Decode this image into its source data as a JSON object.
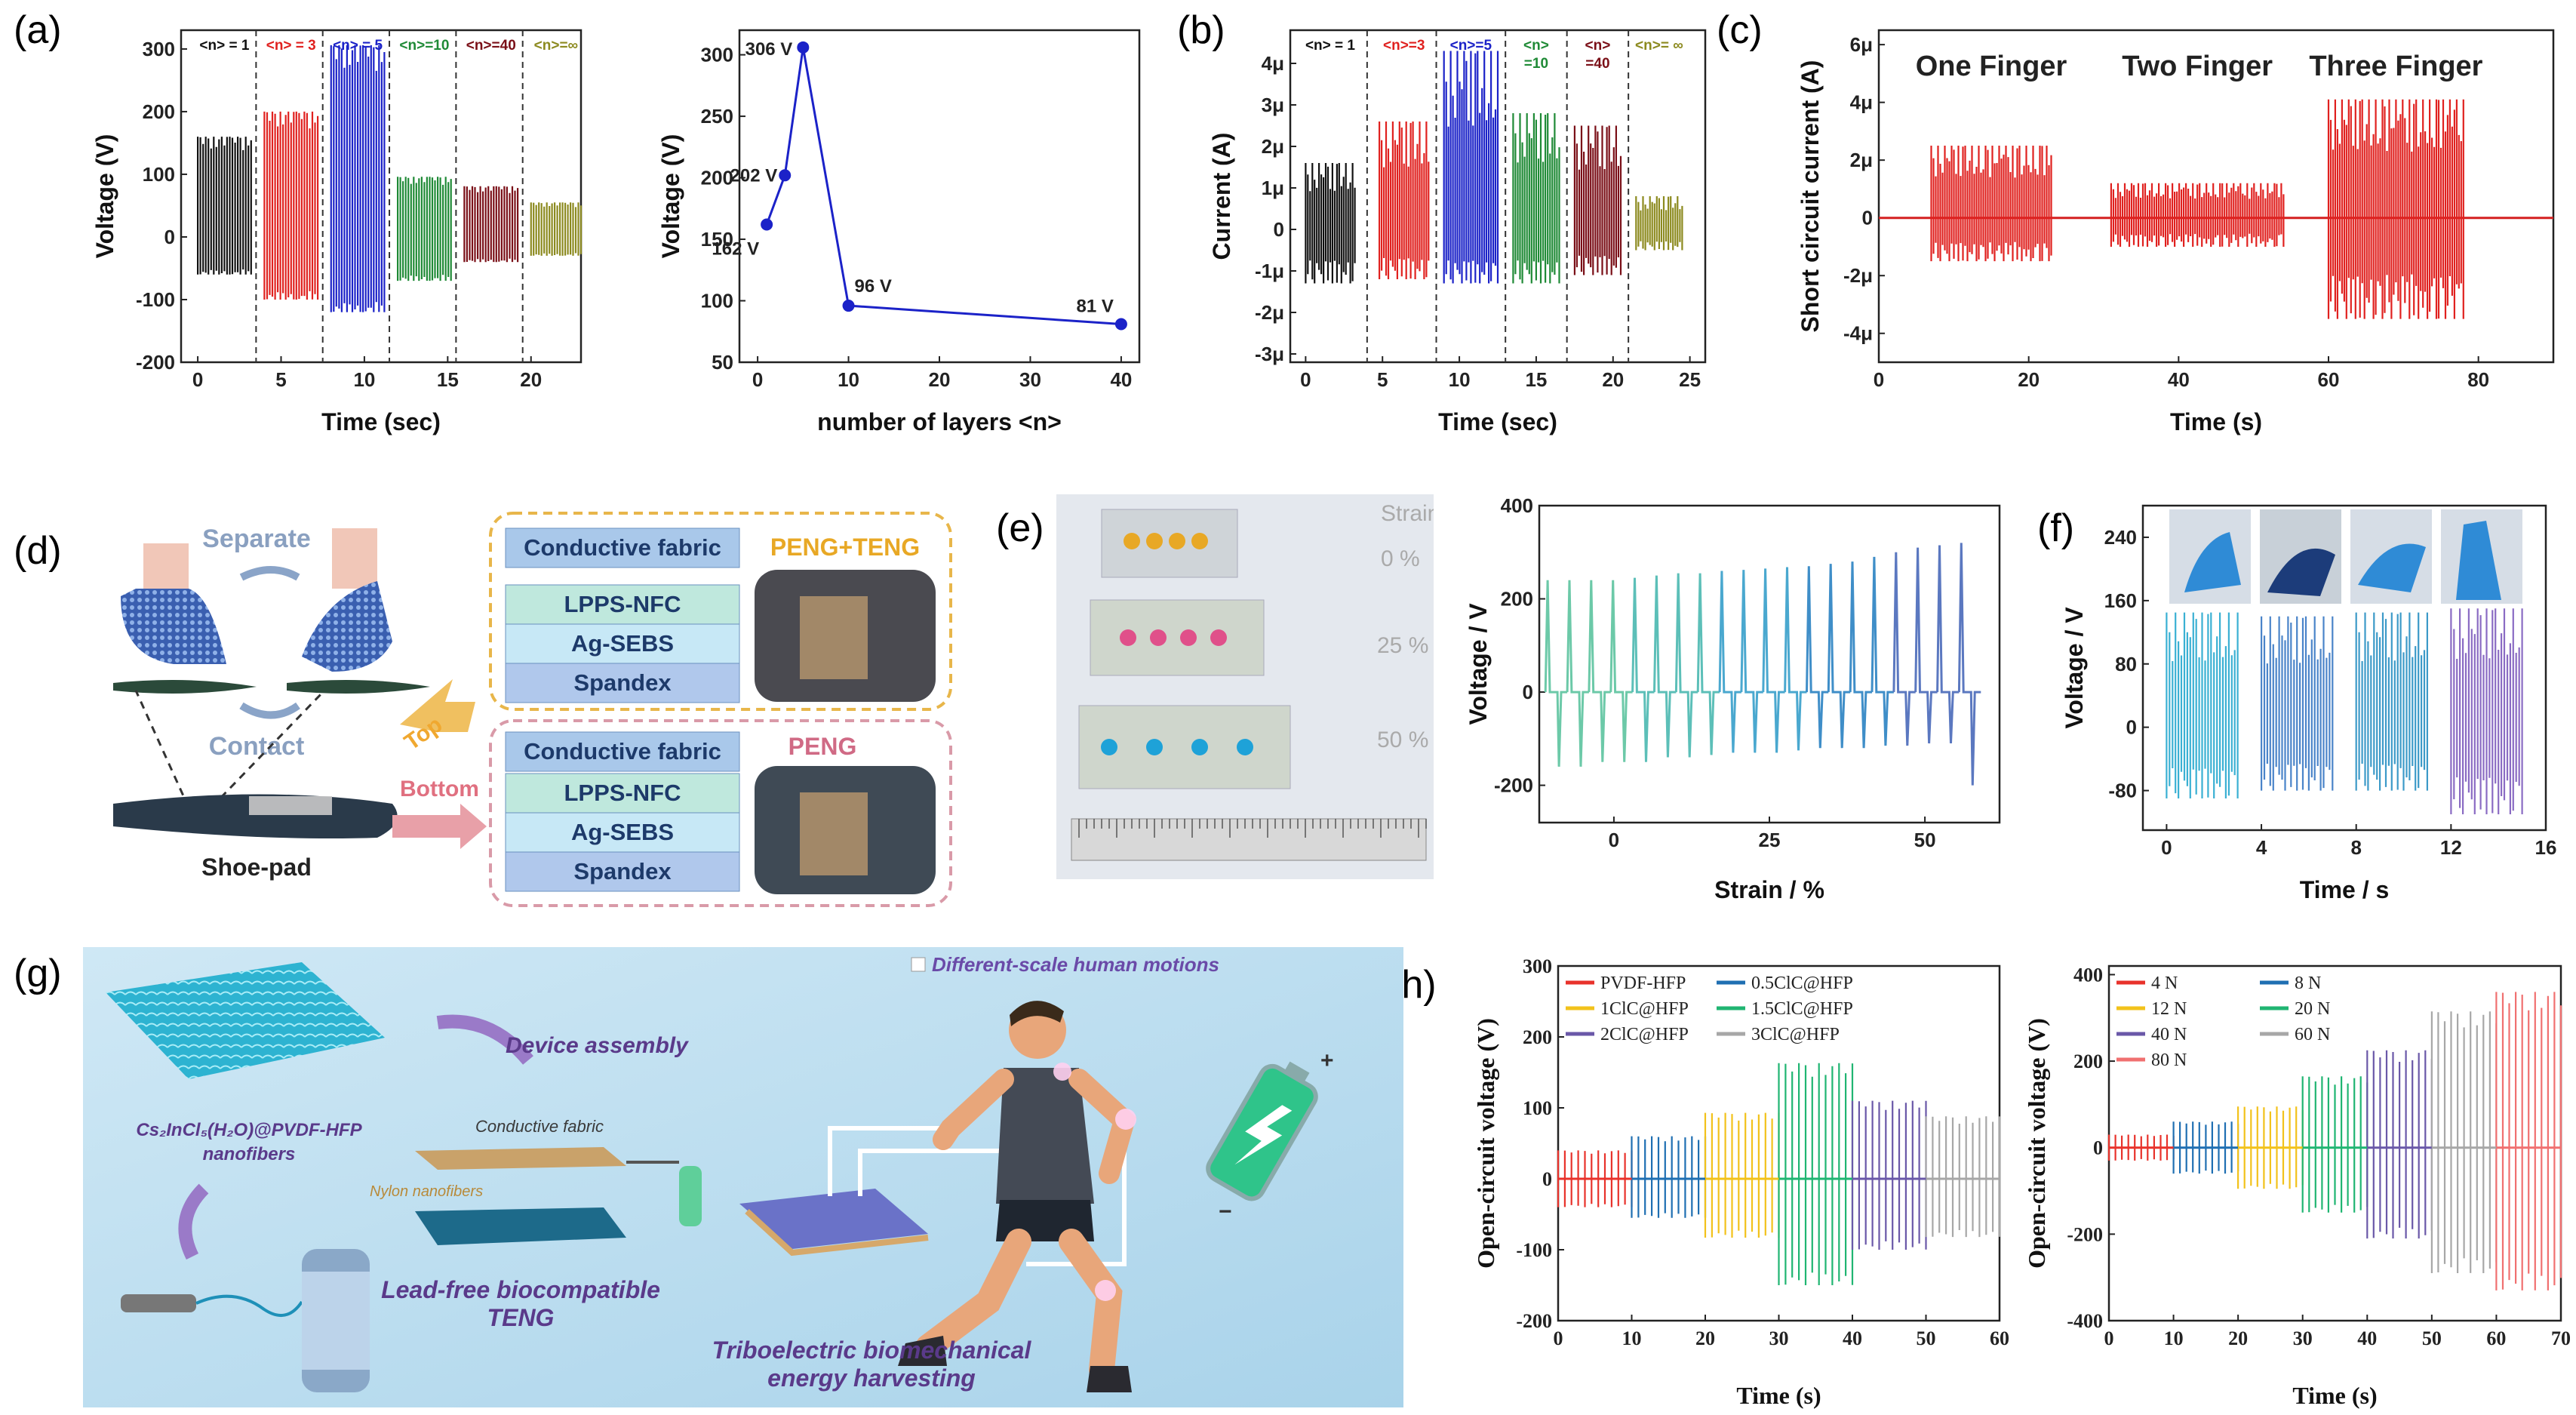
{
  "panels": {
    "a": "(a)",
    "b": "(b)",
    "c": "(c)",
    "d": "(d)",
    "e": "(e)",
    "f": "(f)",
    "g": "(g)",
    "h": "(h)"
  },
  "colors": {
    "black": "#111111",
    "red": "#e0211f",
    "blue": "#1b22c8",
    "green": "#1f8a36",
    "maroon": "#7a0f17",
    "olive": "#8c8a1f",
    "gold": "#e8a825",
    "fabric": "#2aa5b5"
  },
  "chart_data": [
    {
      "id": "a1",
      "type": "area",
      "title": "",
      "xlabel": "Time (sec)",
      "ylabel": "Voltage (V)",
      "xlim": [
        -1,
        23
      ],
      "ylim": [
        -200,
        330
      ],
      "xticks": [
        0,
        5,
        10,
        15,
        20
      ],
      "yticks": [
        -200,
        -100,
        0,
        100,
        200,
        300
      ],
      "dividers": [
        3.5,
        7.5,
        11.5,
        15.5,
        19.5
      ],
      "segment_labels": [
        "<n> = 1",
        "<n> = 3",
        "<n> = 5",
        "<n>=10",
        "<n>=40",
        "<n>=∞"
      ],
      "series": [
        {
          "name": "<n> = 1",
          "x": [
            0,
            3.2
          ],
          "max": 160,
          "min": -60,
          "color": "black"
        },
        {
          "name": "<n> = 3",
          "x": [
            4,
            7.2
          ],
          "max": 200,
          "min": -100,
          "color": "red"
        },
        {
          "name": "<n> = 5",
          "x": [
            8,
            11.2
          ],
          "max": 306,
          "min": -120,
          "color": "blue"
        },
        {
          "name": "<n>=10",
          "x": [
            12,
            15.2
          ],
          "max": 96,
          "min": -70,
          "color": "green"
        },
        {
          "name": "<n>=40",
          "x": [
            16,
            19.2
          ],
          "max": 81,
          "min": -40,
          "color": "maroon"
        },
        {
          "name": "<n>=∞",
          "x": [
            20,
            23
          ],
          "max": 55,
          "min": -30,
          "color": "olive"
        }
      ]
    },
    {
      "id": "a2",
      "type": "line",
      "title": "",
      "xlabel": "number of layers <n>",
      "ylabel": "Voltage (V)",
      "xlim": [
        -2,
        42
      ],
      "ylim": [
        50,
        320
      ],
      "xticks": [
        0,
        10,
        20,
        30,
        40
      ],
      "yticks": [
        50,
        100,
        150,
        200,
        250,
        300
      ],
      "x": [
        1,
        3,
        5,
        10,
        40
      ],
      "values": [
        162,
        202,
        306,
        96,
        81
      ],
      "point_labels": [
        "162 V",
        "202 V",
        "306 V",
        "96 V",
        "81 V"
      ],
      "color": "#1b22c8"
    },
    {
      "id": "b",
      "type": "area",
      "title": "",
      "xlabel": "Time (sec)",
      "ylabel": "Current (A)",
      "xlim": [
        -1,
        26
      ],
      "ylim": [
        -3.2,
        4.8
      ],
      "xticks": [
        0,
        5,
        10,
        15,
        20,
        25
      ],
      "yticks": [
        -3,
        -2,
        -1,
        0,
        1,
        2,
        3,
        4
      ],
      "ytick_labels": [
        "-3μ",
        "-2μ",
        "-1μ",
        "0",
        "1μ",
        "2μ",
        "3μ",
        "4μ"
      ],
      "dividers": [
        4,
        8.5,
        13,
        17,
        21
      ],
      "segment_labels": [
        "<n> = 1",
        "<n>=3",
        "<n>=5",
        "<n>\n=10",
        "<n>\n=40",
        "<n>= ∞"
      ],
      "series": [
        {
          "name": "<n> = 1",
          "x": [
            0,
            3.2
          ],
          "max": 1.6,
          "min": -1.3,
          "color": "black"
        },
        {
          "name": "<n>=3",
          "x": [
            4.8,
            8
          ],
          "max": 2.6,
          "min": -1.2,
          "color": "red"
        },
        {
          "name": "<n>=5",
          "x": [
            9,
            12.5
          ],
          "max": 4.3,
          "min": -1.3,
          "color": "blue"
        },
        {
          "name": "<n>=10",
          "x": [
            13.5,
            16.5
          ],
          "max": 2.8,
          "min": -1.3,
          "color": "green"
        },
        {
          "name": "<n>=40",
          "x": [
            17.5,
            20.5
          ],
          "max": 2.5,
          "min": -1.1,
          "color": "maroon"
        },
        {
          "name": "<n>=∞",
          "x": [
            21.5,
            24.5
          ],
          "max": 0.8,
          "min": -0.5,
          "color": "olive"
        }
      ]
    },
    {
      "id": "c",
      "type": "area",
      "title": "",
      "xlabel": "Time (s)",
      "ylabel": "Short circuit current (A)",
      "xlim": [
        0,
        90
      ],
      "ylim": [
        -5,
        6.5
      ],
      "xticks": [
        0,
        20,
        40,
        60,
        80
      ],
      "yticks": [
        -4,
        -2,
        0,
        2,
        4,
        6
      ],
      "ytick_labels": [
        "-4μ",
        "-2μ",
        "0",
        "2μ",
        "4μ",
        "6μ"
      ],
      "annotations": [
        "One Finger",
        "Two Finger",
        "Three Finger"
      ],
      "series": [
        {
          "name": "One Finger",
          "x": [
            7,
            23
          ],
          "max": 2.5,
          "min": -1.5,
          "color": "red"
        },
        {
          "name": "Two Finger",
          "x": [
            31,
            54
          ],
          "max": 1.2,
          "min": -1.0,
          "color": "red"
        },
        {
          "name": "Three Finger",
          "x": [
            60,
            78
          ],
          "max": 4.1,
          "min": -3.5,
          "color": "red"
        }
      ]
    },
    {
      "id": "e",
      "type": "line",
      "title": "",
      "xlabel": "Strain / %",
      "ylabel": "Voltage / V",
      "xlim": [
        -12,
        62
      ],
      "ylim": [
        -280,
        400
      ],
      "xticks": [
        0,
        25,
        50
      ],
      "yticks": [
        -200,
        0,
        200,
        400
      ],
      "peaks": [
        240,
        240,
        240,
        240,
        245,
        250,
        255,
        255,
        260,
        262,
        265,
        268,
        270,
        275,
        280,
        290,
        300,
        310,
        315,
        320
      ],
      "troughs": [
        -160,
        -160,
        -150,
        -150,
        -150,
        -140,
        -140,
        -135,
        -130,
        -130,
        -130,
        -125,
        -120,
        -120,
        -120,
        -115,
        -115,
        -110,
        -110,
        -200
      ]
    },
    {
      "id": "f",
      "type": "area",
      "title": "",
      "xlabel": "Time / s",
      "ylabel": "Voltage / V",
      "xlim": [
        -1,
        16
      ],
      "ylim": [
        -130,
        280
      ],
      "xticks": [
        0,
        4,
        8,
        12,
        16
      ],
      "yticks": [
        -80,
        0,
        80,
        160,
        240
      ],
      "series": [
        {
          "x": [
            0,
            3
          ],
          "max": 145,
          "min": -90,
          "color": "#3ab0d3"
        },
        {
          "x": [
            4,
            7
          ],
          "max": 140,
          "min": -80,
          "color": "#4a84c9"
        },
        {
          "x": [
            8,
            11
          ],
          "max": 145,
          "min": -80,
          "color": "#3c9ac8"
        },
        {
          "x": [
            12,
            15
          ],
          "max": 150,
          "min": -110,
          "color": "#8a6bc3"
        }
      ]
    },
    {
      "id": "h1",
      "type": "area",
      "title": "",
      "xlabel": "Time (s)",
      "ylabel": "Open-circuit voltage (V)",
      "xlim": [
        0,
        60
      ],
      "ylim": [
        -200,
        300
      ],
      "xticks": [
        0,
        10,
        20,
        30,
        40,
        50,
        60
      ],
      "yticks": [
        -200,
        -100,
        0,
        100,
        200,
        300
      ],
      "series": [
        {
          "name": "PVDF-HFP",
          "x": [
            0,
            10
          ],
          "max": 40,
          "min": -40,
          "color": "#e8322b"
        },
        {
          "name": "0.5ClC@HFP",
          "x": [
            10,
            20
          ],
          "max": 60,
          "min": -55,
          "color": "#1f6fb2"
        },
        {
          "name": "1ClC@HFP",
          "x": [
            20,
            30
          ],
          "max": 93,
          "min": -83,
          "color": "#f2c21b"
        },
        {
          "name": "1.5ClC@HFP",
          "x": [
            30,
            40
          ],
          "max": 163,
          "min": -150,
          "color": "#20b572"
        },
        {
          "name": "2ClC@HFP",
          "x": [
            40,
            50
          ],
          "max": 110,
          "min": -100,
          "color": "#6a58a8"
        },
        {
          "name": "3ClC@HFP",
          "x": [
            50,
            60
          ],
          "max": 88,
          "min": -82,
          "color": "#a7a7a7"
        }
      ]
    },
    {
      "id": "h2",
      "type": "area",
      "title": "",
      "xlabel": "Time (s)",
      "ylabel": "Open-circuit voltage (V)",
      "xlim": [
        0,
        70
      ],
      "ylim": [
        -400,
        420
      ],
      "xticks": [
        0,
        10,
        20,
        30,
        40,
        50,
        60,
        70
      ],
      "yticks": [
        -400,
        -200,
        0,
        200,
        400
      ],
      "series": [
        {
          "name": "4 N",
          "x": [
            0,
            10
          ],
          "max": 30,
          "min": -30,
          "color": "#e8322b"
        },
        {
          "name": "8 N",
          "x": [
            10,
            20
          ],
          "max": 60,
          "min": -60,
          "color": "#1f6fb2"
        },
        {
          "name": "12 N",
          "x": [
            20,
            30
          ],
          "max": 95,
          "min": -95,
          "color": "#f2c21b"
        },
        {
          "name": "20 N",
          "x": [
            30,
            40
          ],
          "max": 165,
          "min": -150,
          "color": "#20b572"
        },
        {
          "name": "40 N",
          "x": [
            40,
            50
          ],
          "max": 225,
          "min": -210,
          "color": "#6a58a8"
        },
        {
          "name": "60 N",
          "x": [
            50,
            60
          ],
          "max": 315,
          "min": -290,
          "color": "#a7a7a7"
        },
        {
          "name": "80 N",
          "x": [
            60,
            70
          ],
          "max": 360,
          "min": -330,
          "color": "#f07070"
        }
      ]
    }
  ],
  "d": {
    "separate": "Separate",
    "contact": "Contact",
    "shoe_pad": "Shoe-pad",
    "top": "Top",
    "bottom": "Bottom",
    "top_layers": [
      "Conductive fabric",
      "LPPS-NFC",
      "Ag-SEBS",
      "Spandex"
    ],
    "top_tag": "PENG+TENG",
    "bottom_layers": [
      "Conductive fabric",
      "LPPS-NFC",
      "Ag-SEBS",
      "Spandex"
    ],
    "bottom_tag": "PENG"
  },
  "e": {
    "strain_title": "Strain",
    "strain_values": [
      "0 %",
      "25 %",
      "50 %"
    ]
  },
  "g": {
    "motions": "Different-scale human motions",
    "assembly": "Device assembly",
    "nanofiber": "Cs₂InCl₅(H₂O)@PVDF-HFP",
    "nanofiber2": "nanofibers",
    "conductive": "Conductive fabric",
    "nylon": "Nylon nanofibers",
    "leadfree": "Lead-free biocompatible",
    "teng": "TENG",
    "harvest1": "Triboelectric biomechanical",
    "harvest2": "energy harvesting",
    "plus": "+",
    "minus": "−"
  }
}
